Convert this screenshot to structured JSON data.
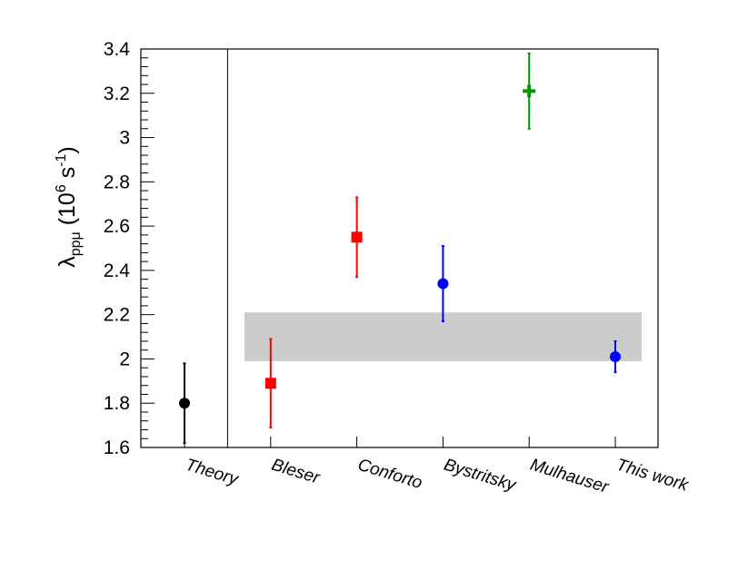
{
  "chart_data": {
    "type": "scatter",
    "ylabel": {
      "symbol": "λ",
      "subscript": "ppμ",
      "unit_open": " (10",
      "unit_exp": "6",
      "unit_mid": " s",
      "unit_exp2": "-1",
      "unit_close": ")"
    },
    "ylim": [
      1.6,
      3.4
    ],
    "yticks": [
      1.6,
      1.8,
      2,
      2.2,
      2.4,
      2.6,
      2.8,
      3,
      3.2,
      3.4
    ],
    "ytick_labels": [
      "1.6",
      "1.8",
      "2",
      "2.2",
      "2.4",
      "2.6",
      "2.8",
      "3",
      "3.2",
      "3.4"
    ],
    "categories": [
      "Theory",
      "Bleser",
      "Conforto",
      "Bystritsky",
      "Mulhauser",
      "This work"
    ],
    "points": [
      {
        "category": "Theory",
        "value": 1.8,
        "err_low": 1.62,
        "err_high": 1.98,
        "marker": "circle",
        "color": "#000000"
      },
      {
        "category": "Bleser",
        "value": 1.89,
        "err_low": 1.69,
        "err_high": 2.09,
        "marker": "square",
        "color": "#ff0000"
      },
      {
        "category": "Conforto",
        "value": 2.55,
        "err_low": 2.37,
        "err_high": 2.73,
        "marker": "square",
        "color": "#ff0000"
      },
      {
        "category": "Bystritsky",
        "value": 2.34,
        "err_low": 2.17,
        "err_high": 2.51,
        "marker": "circle",
        "color": "#0000ff"
      },
      {
        "category": "Mulhauser",
        "value": 3.21,
        "err_low": 3.04,
        "err_high": 3.38,
        "marker": "cross",
        "color": "#009900"
      },
      {
        "category": "This work",
        "value": 2.01,
        "err_low": 1.94,
        "err_high": 2.08,
        "marker": "circle",
        "color": "#0000ff"
      }
    ],
    "band": {
      "y_low": 1.99,
      "y_high": 2.21,
      "color": "#cccccc"
    },
    "grid": false,
    "separator_after_category": "Theory"
  }
}
